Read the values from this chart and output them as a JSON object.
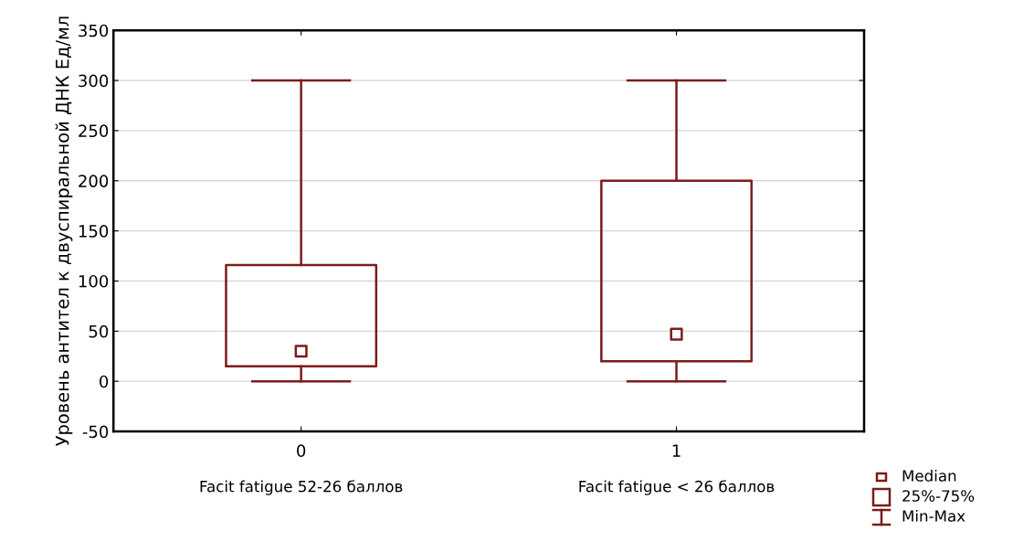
{
  "chart_data": {
    "type": "box",
    "ylabel": "Уровень антител к двуспиральной ДНК Ед/мл",
    "categories": [
      "0",
      "1"
    ],
    "boxes": [
      {
        "low": 0,
        "q1": 15,
        "median": 30,
        "q3": 116,
        "high": 300
      },
      {
        "low": 0,
        "q1": 20,
        "median": 47,
        "q3": 200,
        "high": 300
      }
    ],
    "color": "#7b1c1c",
    "ylim": [
      -50,
      350
    ],
    "yticks": [
      -50,
      0,
      50,
      100,
      150,
      200,
      250,
      300,
      350
    ],
    "grid": "y",
    "marker": "square",
    "annotations": [
      "Facit fatigue 52-26 баллов",
      "Facit fatigue < 26 баллов",
      "Median",
      "25%-75%",
      "Min-Max"
    ]
  }
}
